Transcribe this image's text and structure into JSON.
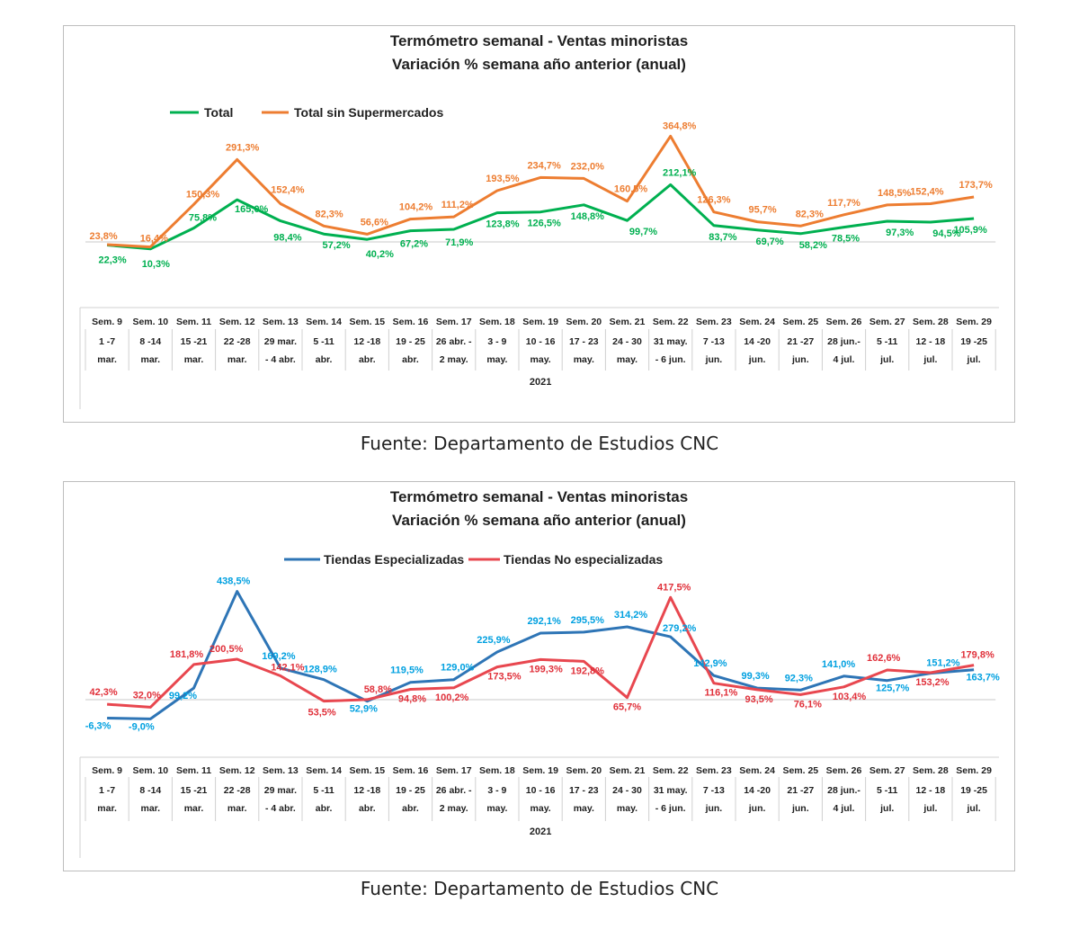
{
  "chart_data": [
    {
      "type": "line",
      "title": "Termómetro semanal - Ventas minoristas",
      "subtitle": "Variación % semana año anterior (anual)",
      "year_label": "2021",
      "source": "Fuente: Departamento de Estudios CNC",
      "weeks": [
        "Sem. 9",
        "Sem. 10",
        "Sem. 11",
        "Sem. 12",
        "Sem. 13",
        "Sem. 14",
        "Sem. 15",
        "Sem. 16",
        "Sem. 17",
        "Sem. 18",
        "Sem. 19",
        "Sem. 20",
        "Sem. 21",
        "Sem. 22",
        "Sem. 23",
        "Sem. 24",
        "Sem. 25",
        "Sem. 26",
        "Sem. 27",
        "Sem. 28",
        "Sem. 29"
      ],
      "ranges": [
        [
          "1 -7",
          "mar."
        ],
        [
          "8 -14",
          "mar."
        ],
        [
          "15 -21",
          "mar."
        ],
        [
          "22 -28",
          "mar."
        ],
        [
          "29 mar.",
          "- 4 abr."
        ],
        [
          "5 -11",
          "abr."
        ],
        [
          "12 -18",
          "abr."
        ],
        [
          "19 - 25",
          "abr."
        ],
        [
          "26 abr. -",
          "2 may."
        ],
        [
          "3 - 9",
          "may."
        ],
        [
          "10 - 16",
          "may."
        ],
        [
          "17 - 23",
          "may."
        ],
        [
          "24 - 30",
          "may."
        ],
        [
          "31 may.",
          "- 6 jun."
        ],
        [
          "7 -13",
          "jun."
        ],
        [
          "14 -20",
          "jun."
        ],
        [
          "21 -27",
          "jun."
        ],
        [
          "28 jun.-",
          "4 jul."
        ],
        [
          "5 -11",
          "jul."
        ],
        [
          "12 - 18",
          "jul."
        ],
        [
          "19 -25",
          "jul."
        ]
      ],
      "y_range": [
        -30,
        400
      ],
      "series": [
        {
          "name": "Total",
          "color": "#00b050",
          "values": [
            22.3,
            10.3,
            75.8,
            165.0,
            98.4,
            57.2,
            40.2,
            67.2,
            71.9,
            123.8,
            126.5,
            148.8,
            99.7,
            212.1,
            83.7,
            69.7,
            58.2,
            78.5,
            97.3,
            94.5,
            105.9
          ],
          "labels": [
            "22,3%",
            "10,3%",
            "75,8%",
            "165,0%",
            "98,4%",
            "57,2%",
            "40,2%",
            "67,2%",
            "71,9%",
            "123,8%",
            "126,5%",
            "148,8%",
            "99,7%",
            "212,1%",
            "83,7%",
            "69,7%",
            "58,2%",
            "78,5%",
            "97,3%",
            "94,5%",
            "105,9%"
          ]
        },
        {
          "name": "Total sin Supermercados",
          "color": "#ed7d31",
          "values": [
            23.8,
            16.4,
            150.3,
            291.3,
            152.4,
            82.3,
            56.6,
            104.2,
            111.2,
            193.5,
            234.7,
            232.0,
            160.5,
            364.8,
            126.3,
            95.7,
            82.3,
            117.7,
            148.5,
            152.4,
            173.7
          ],
          "labels": [
            "23,8%",
            "16,4%",
            "150,3%",
            "291,3%",
            "152,4%",
            "82,3%",
            "56,6%",
            "104,2%",
            "111,2%",
            "193,5%",
            "234,7%",
            "232,0%",
            "160,5%",
            "364,8%",
            "126,3%",
            "95,7%",
            "82,3%",
            "117,7%",
            "148,5%",
            "152,4%",
            "173,7%"
          ]
        }
      ]
    },
    {
      "type": "line",
      "title": "Termómetro semanal - Ventas minoristas",
      "subtitle": "Variación % semana año anterior (anual)",
      "year_label": "2021",
      "source": "Fuente: Departamento de Estudios CNC",
      "weeks": [
        "Sem. 9",
        "Sem. 10",
        "Sem. 11",
        "Sem. 12",
        "Sem. 13",
        "Sem. 14",
        "Sem. 15",
        "Sem. 16",
        "Sem. 17",
        "Sem. 18",
        "Sem. 19",
        "Sem. 20",
        "Sem. 21",
        "Sem. 22",
        "Sem. 23",
        "Sem. 24",
        "Sem. 25",
        "Sem. 26",
        "Sem. 27",
        "Sem. 28",
        "Sem. 29"
      ],
      "ranges": [
        [
          "1 -7",
          "mar."
        ],
        [
          "8 -14",
          "mar."
        ],
        [
          "15 -21",
          "mar."
        ],
        [
          "22 -28",
          "mar."
        ],
        [
          "29 mar.",
          "- 4 abr."
        ],
        [
          "5 -11",
          "abr."
        ],
        [
          "12 -18",
          "abr."
        ],
        [
          "19 - 25",
          "abr."
        ],
        [
          "26 abr. -",
          "2 may."
        ],
        [
          "3 - 9",
          "may."
        ],
        [
          "10 - 16",
          "may."
        ],
        [
          "17 - 23",
          "may."
        ],
        [
          "24 - 30",
          "may."
        ],
        [
          "31 may.",
          "- 6 jun."
        ],
        [
          "7 -13",
          "jun."
        ],
        [
          "14 -20",
          "jun."
        ],
        [
          "21 -27",
          "jun."
        ],
        [
          "28 jun.-",
          "4 jul."
        ],
        [
          "5 -11",
          "jul."
        ],
        [
          "12 - 18",
          "jul."
        ],
        [
          "19 -25",
          "jul."
        ]
      ],
      "y_range": [
        -30,
        450
      ],
      "series": [
        {
          "name": "Tiendas Especializadas",
          "color": "#2e75b6",
          "label_color": "#00a0e0",
          "values": [
            -6.3,
            -9.0,
            99.2,
            438.5,
            169.2,
            128.9,
            52.9,
            119.5,
            129.0,
            225.9,
            292.1,
            295.5,
            314.2,
            279.2,
            142.9,
            99.3,
            92.3,
            141.0,
            125.7,
            151.2,
            163.7
          ],
          "labels": [
            "-6,3%",
            "-9,0%",
            "99,2%",
            "438,5%",
            "169,2%",
            "128,9%",
            "52,9%",
            "119,5%",
            "129,0%",
            "225,9%",
            "292,1%",
            "295,5%",
            "314,2%",
            "279,2%",
            "142,9%",
            "99,3%",
            "92,3%",
            "141,0%",
            "125,7%",
            "151,2%",
            "163,7%"
          ]
        },
        {
          "name": "Tiendas No especializadas",
          "color": "#e8474f",
          "label_color": "#e0303a",
          "values": [
            42.3,
            32.0,
            181.8,
            200.5,
            142.1,
            53.5,
            58.8,
            94.8,
            100.2,
            173.5,
            199.3,
            192.8,
            65.7,
            417.5,
            116.1,
            93.5,
            76.1,
            103.4,
            162.6,
            153.2,
            179.8
          ],
          "labels": [
            "42,3%",
            "32,0%",
            "181,8%",
            "200,5%",
            "142,1%",
            "53,5%",
            "58,8%",
            "94,8%",
            "100,2%",
            "173,5%",
            "199,3%",
            "192,8%",
            "65,7%",
            "417,5%",
            "116,1%",
            "93,5%",
            "76,1%",
            "103,4%",
            "162,6%",
            "153,2%",
            "179,8%"
          ]
        }
      ]
    }
  ]
}
